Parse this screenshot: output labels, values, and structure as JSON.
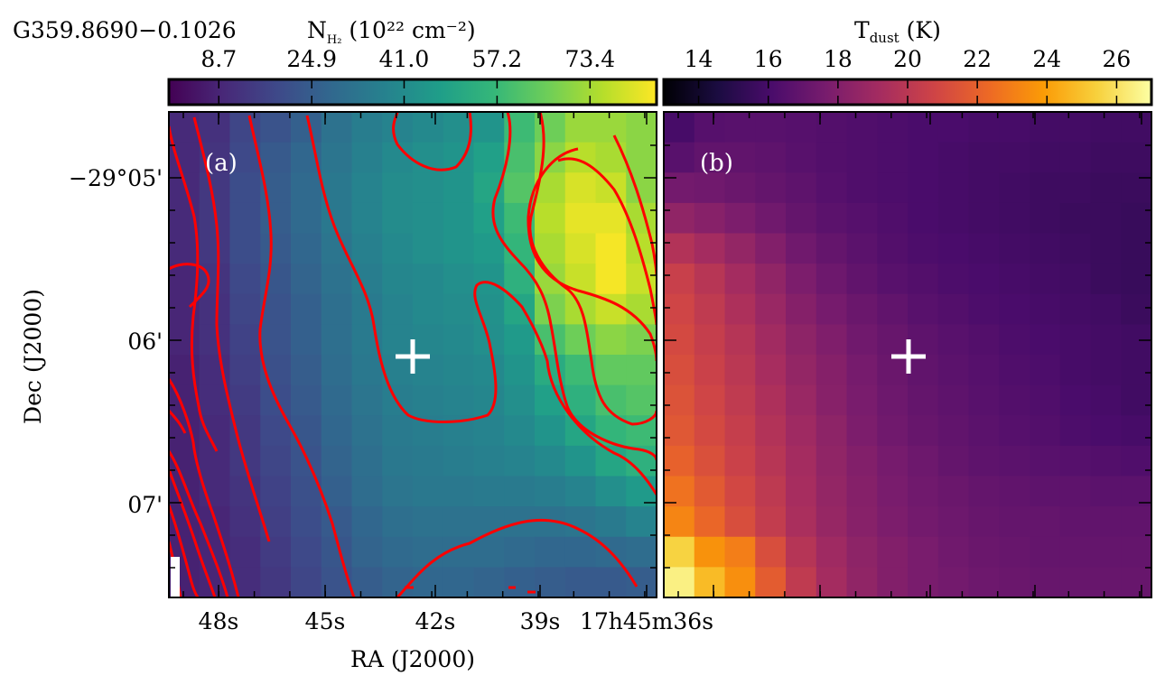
{
  "figure": {
    "source_name": "G359.8690−0.1026",
    "cross_color": "#ffffff",
    "contour_color": "#ff0000"
  },
  "chart_data": [
    {
      "type": "heatmap",
      "panel_label": "(a)",
      "colorbar": {
        "label_main": "N",
        "label_sub": "H₂",
        "label_unit": " (10²² cm⁻²)",
        "ticks": [
          "8.7",
          "24.9",
          "41.0",
          "57.2",
          "73.4"
        ],
        "tick_values": [
          8.7,
          24.9,
          41.0,
          57.2,
          73.4
        ],
        "range": [
          0,
          85
        ],
        "colormap": "viridis"
      },
      "xlabel": "RA (J2000)",
      "ylabel": "Dec (J2000)",
      "x_ticks": [
        "48s",
        "45s",
        "42s",
        "39s",
        "17h45m36s"
      ],
      "y_ticks": [
        "−29°05'",
        "06'",
        "07'"
      ],
      "x_range": [
        "17h45m49.0s",
        "17h45m35.5s"
      ],
      "y_range": [
        "−29°04'43\"",
        "−29°07'38\""
      ],
      "grid": false,
      "contours": true,
      "marker": "+",
      "values": [
        [
          10,
          12,
          18,
          22,
          26,
          32,
          36,
          38,
          40,
          42,
          44,
          58,
          66,
          72,
          72,
          70
        ],
        [
          10,
          13,
          19,
          24,
          28,
          33,
          37,
          40,
          42,
          44,
          48,
          60,
          70,
          76,
          74,
          70
        ],
        [
          10,
          14,
          20,
          25,
          29,
          34,
          38,
          41,
          42,
          44,
          50,
          62,
          74,
          80,
          78,
          70
        ],
        [
          10,
          14,
          20,
          25,
          29,
          34,
          38,
          41,
          42,
          44,
          48,
          58,
          76,
          82,
          82,
          74
        ],
        [
          10,
          14,
          20,
          24,
          28,
          33,
          37,
          40,
          42,
          44,
          46,
          56,
          74,
          80,
          84,
          76
        ],
        [
          9,
          13,
          19,
          23,
          27,
          32,
          36,
          39,
          40,
          42,
          44,
          54,
          72,
          78,
          84,
          78
        ],
        [
          9,
          12,
          18,
          22,
          26,
          31,
          35,
          38,
          40,
          41,
          43,
          50,
          68,
          74,
          78,
          74
        ],
        [
          9,
          12,
          17,
          22,
          26,
          31,
          35,
          38,
          39,
          40,
          42,
          46,
          60,
          66,
          70,
          68
        ],
        [
          8,
          11,
          16,
          21,
          25,
          30,
          34,
          37,
          38,
          39,
          40,
          44,
          52,
          58,
          64,
          64
        ],
        [
          8,
          11,
          15,
          20,
          24,
          29,
          33,
          36,
          37,
          38,
          39,
          42,
          48,
          54,
          60,
          62
        ],
        [
          8,
          10,
          14,
          19,
          23,
          28,
          32,
          35,
          36,
          37,
          38,
          40,
          44,
          50,
          56,
          58
        ],
        [
          8,
          10,
          14,
          18,
          22,
          27,
          31,
          34,
          35,
          36,
          37,
          38,
          40,
          44,
          50,
          54
        ],
        [
          8,
          10,
          13,
          17,
          21,
          26,
          30,
          33,
          34,
          34,
          35,
          35,
          36,
          38,
          42,
          46
        ],
        [
          8,
          9,
          12,
          16,
          20,
          24,
          28,
          31,
          32,
          32,
          32,
          32,
          32,
          33,
          35,
          38
        ],
        [
          8,
          9,
          11,
          15,
          19,
          23,
          27,
          29,
          30,
          30,
          30,
          29,
          28,
          28,
          29,
          30
        ],
        [
          8,
          9,
          11,
          14,
          18,
          22,
          25,
          27,
          28,
          28,
          27,
          26,
          25,
          24,
          24,
          25
        ]
      ]
    },
    {
      "type": "heatmap",
      "panel_label": "(b)",
      "colorbar": {
        "label_main": "T",
        "label_sub": "dust",
        "label_unit": " (K)",
        "ticks": [
          "14",
          "16",
          "18",
          "20",
          "22",
          "24",
          "26"
        ],
        "tick_values": [
          14,
          16,
          18,
          20,
          22,
          24,
          26
        ],
        "range": [
          13,
          27
        ],
        "colormap": "inferno"
      },
      "grid": false,
      "marker": "+",
      "values": [
        [
          16.0,
          16.5,
          16.6,
          16.6,
          16.5,
          16.4,
          16.3,
          16.2,
          16.1,
          16.1,
          16.0,
          16.0,
          15.9,
          15.9,
          15.8,
          15.8
        ],
        [
          16.6,
          16.9,
          16.9,
          16.8,
          16.6,
          16.4,
          16.3,
          16.2,
          16.1,
          16.0,
          15.9,
          15.9,
          15.8,
          15.8,
          15.7,
          15.7
        ],
        [
          17.5,
          17.4,
          17.2,
          17.0,
          16.8,
          16.5,
          16.3,
          16.2,
          16.1,
          16.0,
          15.9,
          15.8,
          15.7,
          15.7,
          15.6,
          15.6
        ],
        [
          18.5,
          18.2,
          17.8,
          17.4,
          17.0,
          16.7,
          16.5,
          16.3,
          16.1,
          16.0,
          15.9,
          15.8,
          15.7,
          15.6,
          15.6,
          15.5
        ],
        [
          19.7,
          19.2,
          18.6,
          18.0,
          17.4,
          17.0,
          16.7,
          16.4,
          16.2,
          16.1,
          16.0,
          15.9,
          15.8,
          15.7,
          15.6,
          15.5
        ],
        [
          20.5,
          19.9,
          19.2,
          18.5,
          17.8,
          17.3,
          16.9,
          16.6,
          16.4,
          16.2,
          16.1,
          16.0,
          15.9,
          15.8,
          15.6,
          15.5
        ],
        [
          20.8,
          20.2,
          19.5,
          18.8,
          18.1,
          17.6,
          17.2,
          16.9,
          16.6,
          16.4,
          16.2,
          16.1,
          16.0,
          15.9,
          15.8,
          15.6
        ],
        [
          21.0,
          20.4,
          19.8,
          19.1,
          18.4,
          17.9,
          17.4,
          17.1,
          16.8,
          16.6,
          16.4,
          16.2,
          16.1,
          16.0,
          15.9,
          15.8
        ],
        [
          21.2,
          20.6,
          20.0,
          19.3,
          18.6,
          18.1,
          17.6,
          17.2,
          16.9,
          16.7,
          16.5,
          16.3,
          16.2,
          16.0,
          15.9,
          15.8
        ],
        [
          21.4,
          20.8,
          20.2,
          19.5,
          18.8,
          18.2,
          17.7,
          17.3,
          17.0,
          16.8,
          16.6,
          16.4,
          16.3,
          16.1,
          16.0,
          15.8
        ],
        [
          21.6,
          21.0,
          20.4,
          19.7,
          19.0,
          18.4,
          17.8,
          17.4,
          17.1,
          16.9,
          16.7,
          16.5,
          16.4,
          16.2,
          16.1,
          16.0
        ],
        [
          22.0,
          21.3,
          20.6,
          19.9,
          19.2,
          18.5,
          18.0,
          17.6,
          17.3,
          17.0,
          16.8,
          16.7,
          16.6,
          16.5,
          16.4,
          16.3
        ],
        [
          22.6,
          21.7,
          20.9,
          20.1,
          19.3,
          18.6,
          18.1,
          17.7,
          17.4,
          17.2,
          17.0,
          16.9,
          16.8,
          16.8,
          16.7,
          16.7
        ],
        [
          23.2,
          22.2,
          21.2,
          20.3,
          19.4,
          18.7,
          18.2,
          17.8,
          17.5,
          17.3,
          17.1,
          17.0,
          17.0,
          16.9,
          16.9,
          16.9
        ],
        [
          25.5,
          23.6,
          23.0,
          21.2,
          19.8,
          19.0,
          18.4,
          18.0,
          17.7,
          17.4,
          17.2,
          17.1,
          17.0,
          17.0,
          17.0,
          17.0
        ],
        [
          26.5,
          24.8,
          23.5,
          21.8,
          20.2,
          19.2,
          18.5,
          18.0,
          17.7,
          17.5,
          17.3,
          17.2,
          17.1,
          17.1,
          17.1,
          17.1
        ]
      ]
    }
  ]
}
